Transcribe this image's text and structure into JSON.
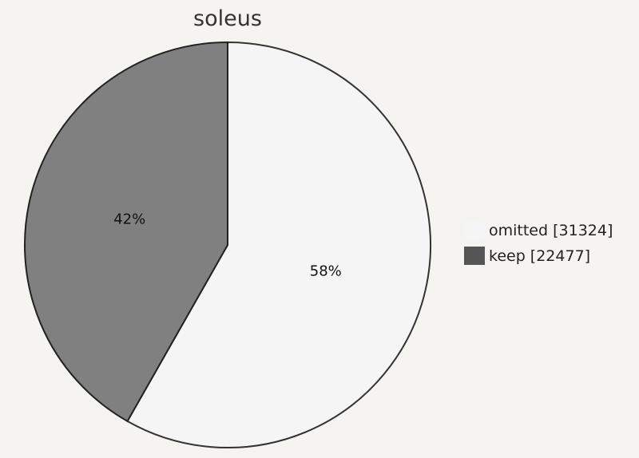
{
  "chart_data": {
    "type": "pie",
    "title": "soleus",
    "slices": [
      {
        "label": "omitted [31324]",
        "value": 31324,
        "percent_label": "58%",
        "color": "#f5f5f5"
      },
      {
        "label": "keep [22477]",
        "value": 22477,
        "percent_label": "42%",
        "color": "#808080"
      }
    ],
    "legend_swatch_colors": [
      "#f5f5f5",
      "#555555"
    ],
    "legend_position": "right",
    "start_angle": "12 o'clock, clockwise"
  }
}
